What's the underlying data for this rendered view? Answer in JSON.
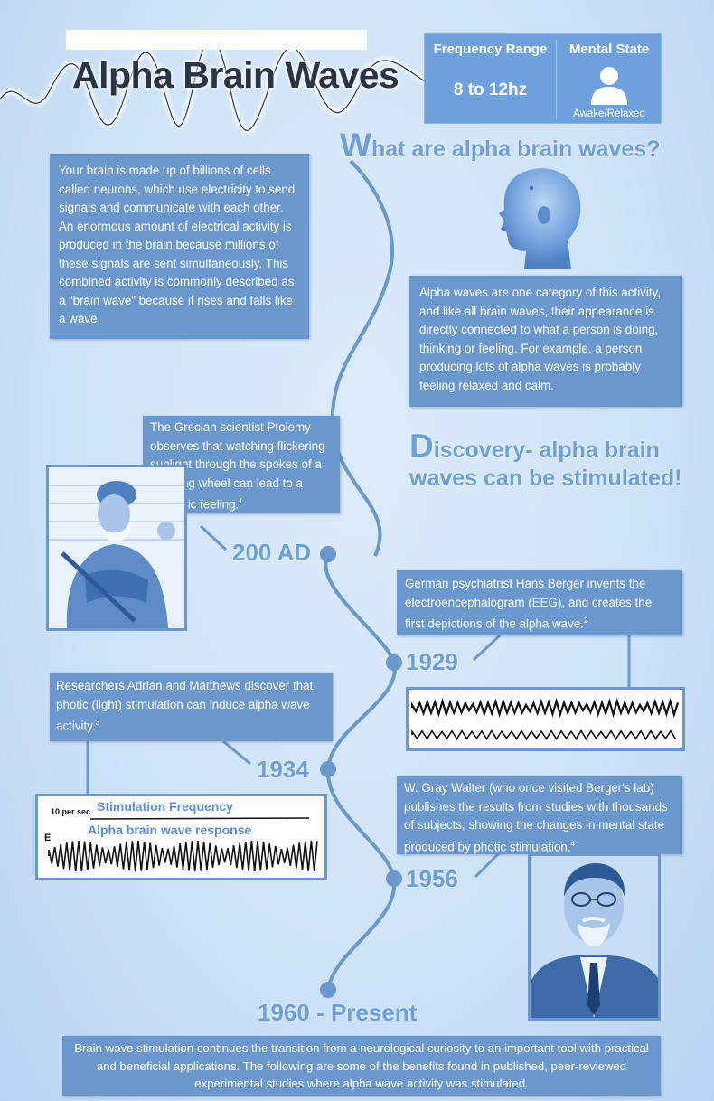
{
  "header": {
    "title": "Alpha Brain Waves",
    "frequency_label": "Frequency Range",
    "frequency_value": "8 to 12hz",
    "mental_state_label": "Mental State",
    "mental_state_value": "Awake/Relaxed"
  },
  "what_section": {
    "heading_cap": "W",
    "heading_rest": "hat are alpha brain waves?",
    "intro_text": "Your brain is made up of billions of cells called neurons, which use electricity to send signals and communicate with each other. An enormous amount of electrical activity is produced in the brain because millions of these signals are sent simultaneously. This combined activity is commonly described as a “brain wave” because it rises and falls like a wave.",
    "alpha_text": "Alpha waves are one category of this activity, and like all brain waves, their appearance is directly connected to what a person is doing, thinking or feeling. For example, a person producing lots of alpha waves is probably feeling relaxed and calm."
  },
  "discovery_section": {
    "heading_cap": "D",
    "heading_line1": "iscovery- alpha brain",
    "heading_line2": "waves can be stimulated!"
  },
  "timeline": [
    {
      "year": "200 AD",
      "text": "The Grecian scientist Ptolemy observes that watching flickering sunlight through the spokes of a spinning wheel can lead to a euphoric feeling.",
      "note": "1"
    },
    {
      "year": "1929",
      "text": "German psychiatrist Hans Berger invents the electroencephalogram (EEG), and creates the first depictions of the alpha wave.",
      "note": "2"
    },
    {
      "year": "1934",
      "text": "Researchers Adrian and Matthews discover that photic (light) stimulation can induce alpha wave activity.",
      "note": "3"
    },
    {
      "year": "1956",
      "text": "W. Gray Walter (who once visited Berger's lab) publishes the results from studies with thousands of subjects, showing the changes in mental state produced by photic stimulation.",
      "note": "4"
    },
    {
      "year": "1960 - Present",
      "text": "Brain wave stimulation continues the transition from a neurological curiosity to an important tool with practical and beneficial applications. The following are some of the benefits found in published, peer-reviewed experimental studies where alpha wave activity was stimulated.",
      "note": ""
    }
  ],
  "eeg_1934": {
    "scale_label": "10 per sec",
    "stim_label": "Stimulation Frequency",
    "response_letter": "E",
    "response_label": "Alpha brain wave response"
  },
  "colors": {
    "box": "#6a97cc",
    "heading": "#6e9fd8",
    "line": "#6a97cc",
    "background": "#d4e6f9"
  },
  "icons": {
    "person": "person-icon",
    "head": "head-profile-icon"
  }
}
